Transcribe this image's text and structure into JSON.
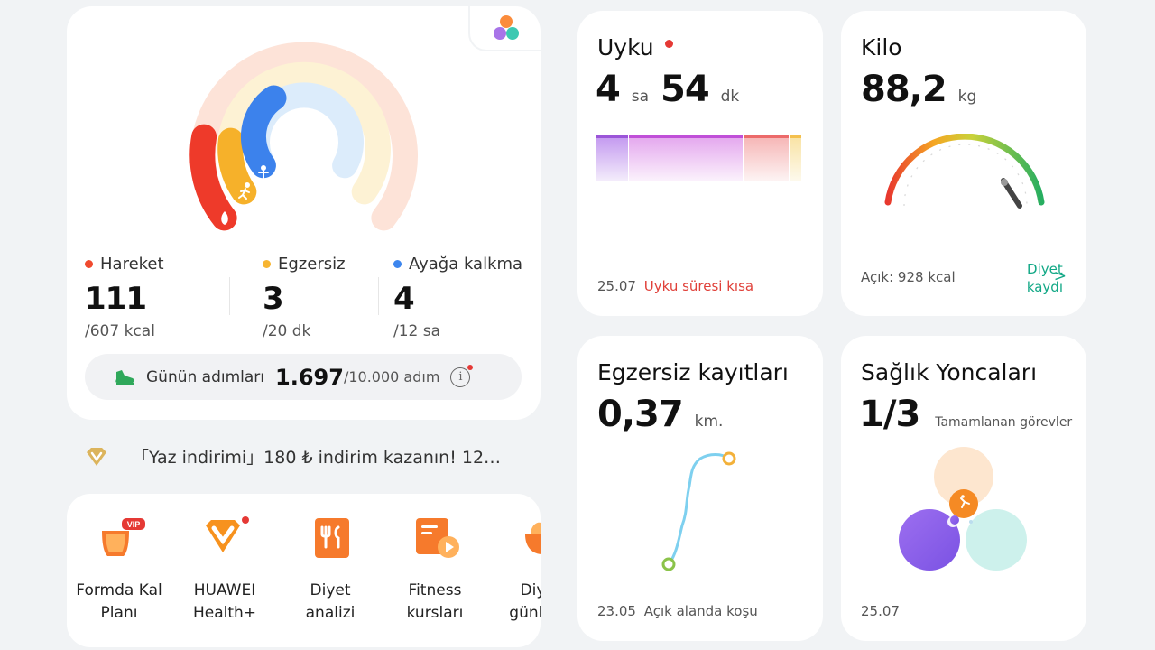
{
  "activity": {
    "move": {
      "label": "Hareket",
      "value": "111",
      "goal": "/607 kcal",
      "color": "#f04a2e"
    },
    "exercise": {
      "label": "Egzersiz",
      "value": "3",
      "goal": "/20 dk",
      "color": "#f7b531"
    },
    "stand": {
      "label": "Ayağa kalkma",
      "value": "4",
      "goal": "/12 sa",
      "color": "#3d86ee"
    },
    "steps": {
      "label": "Günün adımları",
      "value": "1.697",
      "goal": "/10.000 adım"
    },
    "progress": {
      "move": 0.18,
      "exercise": 0.15,
      "stand": 0.33
    }
  },
  "promo": {
    "text": "「Yaz indirimi」180 ₺ indirim kazanın! 12…"
  },
  "shortcuts": [
    {
      "icon": "formda-kal-icon",
      "label1": "Formda Kal",
      "label2": "Planı",
      "badge": "VIP"
    },
    {
      "icon": "huawei-health-plus-icon",
      "label1": "HUAWEI",
      "label2": "Health+"
    },
    {
      "icon": "diet-analysis-icon",
      "label1": "Diyet",
      "label2": "analizi"
    },
    {
      "icon": "fitness-courses-icon",
      "label1": "Fitness",
      "label2": "kursları"
    },
    {
      "icon": "diet-diary-icon",
      "label1": "Diyet",
      "label2": "günlüğü"
    }
  ],
  "sleep": {
    "title": "Uyku",
    "hours": "4",
    "hours_unit": "sa",
    "minutes": "54",
    "minutes_unit": "dk",
    "date": "25.07",
    "status": "Uyku süresi kısa"
  },
  "weight": {
    "title": "Kilo",
    "value": "88,2",
    "unit": "kg",
    "deficit": "Açık: 928 kcal",
    "diet_link_line1": "Diyet",
    "diet_link_line2": "kaydı",
    "chevron": ">"
  },
  "exercise_records": {
    "title": "Egzersiz kayıtları",
    "value": "0,37",
    "unit": "km.",
    "date": "23.05",
    "type": "Açık alanda koşu"
  },
  "clover": {
    "title": "Sağlık Yoncaları",
    "value": "1/3",
    "subtitle": "Tamamlanan görevler",
    "date": "25.07"
  },
  "colors": {
    "accent_green": "#12a886",
    "warning_red": "#e0413a",
    "sleep_purple": "#b05be0"
  }
}
